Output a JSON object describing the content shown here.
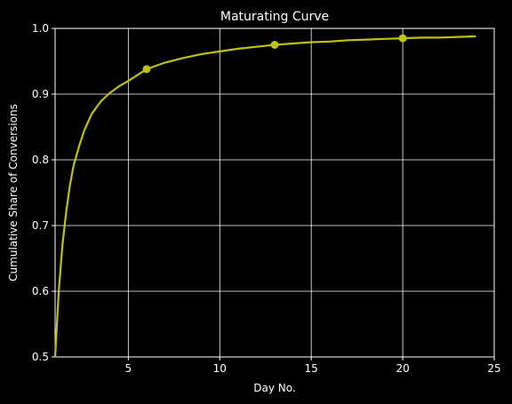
{
  "chart_data": {
    "type": "line",
    "title": "Maturating Curve",
    "xlabel": "Day No.",
    "ylabel": "Cumulative Share of Conversions",
    "xlim": [
      1,
      25
    ],
    "ylim": [
      0.5,
      1.0
    ],
    "x_ticks": [
      5,
      10,
      15,
      20,
      25
    ],
    "y_ticks": [
      0.5,
      0.6,
      0.7,
      0.8,
      0.9,
      1.0
    ],
    "x_tick_labels": [
      "5",
      "10",
      "15",
      "20",
      "25"
    ],
    "y_tick_labels": [
      "0.5",
      "0.6",
      "0.7",
      "0.8",
      "0.9",
      "1.0"
    ],
    "grid": true,
    "background": "#000000",
    "line_color": "#c0c010",
    "series": [
      {
        "x": [
          1,
          1.2,
          1.4,
          1.6,
          1.8,
          2,
          2.3,
          2.6,
          3,
          3.5,
          4,
          4.5,
          5,
          6,
          7,
          8,
          9,
          10,
          11,
          12,
          13,
          14,
          15,
          16,
          17,
          18,
          19,
          20,
          21,
          22,
          23,
          24
        ],
        "y": [
          0.5,
          0.6,
          0.67,
          0.72,
          0.76,
          0.79,
          0.82,
          0.845,
          0.87,
          0.889,
          0.902,
          0.912,
          0.92,
          0.938,
          0.948,
          0.955,
          0.961,
          0.965,
          0.969,
          0.972,
          0.975,
          0.977,
          0.979,
          0.98,
          0.982,
          0.983,
          0.984,
          0.985,
          0.986,
          0.986,
          0.987,
          0.988
        ]
      }
    ],
    "markers": {
      "x": [
        6,
        13,
        20
      ],
      "y": [
        0.938,
        0.975,
        0.985
      ]
    }
  }
}
